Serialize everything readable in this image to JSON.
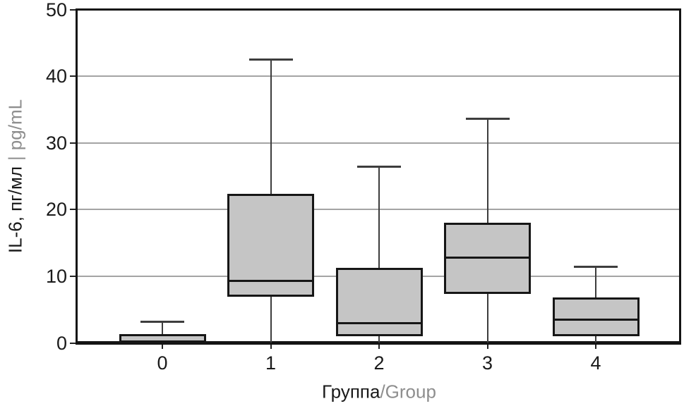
{
  "chart_data": {
    "type": "boxplot",
    "title": "",
    "x_axis_title": {
      "primary": "Группа",
      "secondary": "/Group"
    },
    "y_axis_title": {
      "primary": "IL-6, пг/мл",
      "separator": "|",
      "secondary": "pg/mL"
    },
    "categories": [
      "0",
      "1",
      "2",
      "3",
      "4"
    ],
    "y_ticks": [
      0,
      10,
      20,
      30,
      40,
      50
    ],
    "ylim": [
      0,
      50
    ],
    "grid": "horizontal",
    "legend": "none",
    "series": [
      {
        "category": "0",
        "whisker_low": 0,
        "q1": 0,
        "median": 0,
        "q3": 1.3,
        "whisker_high": 3.2
      },
      {
        "category": "1",
        "whisker_low": 0,
        "q1": 6.9,
        "median": 9.3,
        "q3": 22.4,
        "whisker_high": 42.5
      },
      {
        "category": "2",
        "whisker_low": 0,
        "q1": 1.0,
        "median": 3.0,
        "q3": 11.3,
        "whisker_high": 26.4
      },
      {
        "category": "3",
        "whisker_low": 0,
        "q1": 7.3,
        "median": 12.8,
        "q3": 18.0,
        "whisker_high": 33.6
      },
      {
        "category": "4",
        "whisker_low": 0,
        "q1": 1.0,
        "median": 3.5,
        "q3": 6.8,
        "whisker_high": 11.4
      }
    ],
    "colors": {
      "background": "#ffffff",
      "box_fill": "#c5c5c5",
      "box_border": "#161616",
      "median": "#161616",
      "whisker": "#3d3d3d",
      "gridline": "#a4a4a4",
      "frame": "#141414",
      "tick_mark": "#222222",
      "tick_label": "#1a1a1a",
      "secondary_text": "#8e8e8e"
    }
  }
}
